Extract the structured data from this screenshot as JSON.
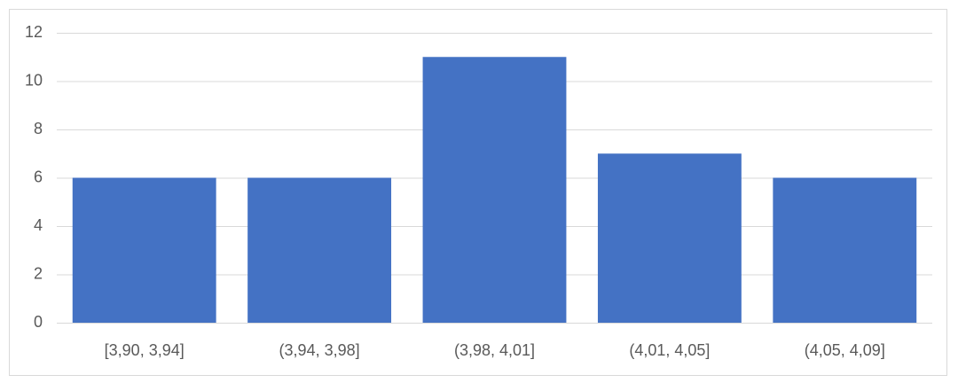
{
  "chart_data": {
    "type": "bar",
    "categories": [
      "[3,90, 3,94]",
      "(3,94, 3,98]",
      "(3,98, 4,01]",
      "(4,01, 4,05]",
      "(4,05, 4,09]"
    ],
    "values": [
      6,
      6,
      11,
      7,
      6
    ],
    "color": "#4472c4",
    "ylim": [
      0,
      12
    ],
    "yticks": [
      0,
      2,
      4,
      6,
      8,
      10,
      12
    ],
    "grid": true
  }
}
